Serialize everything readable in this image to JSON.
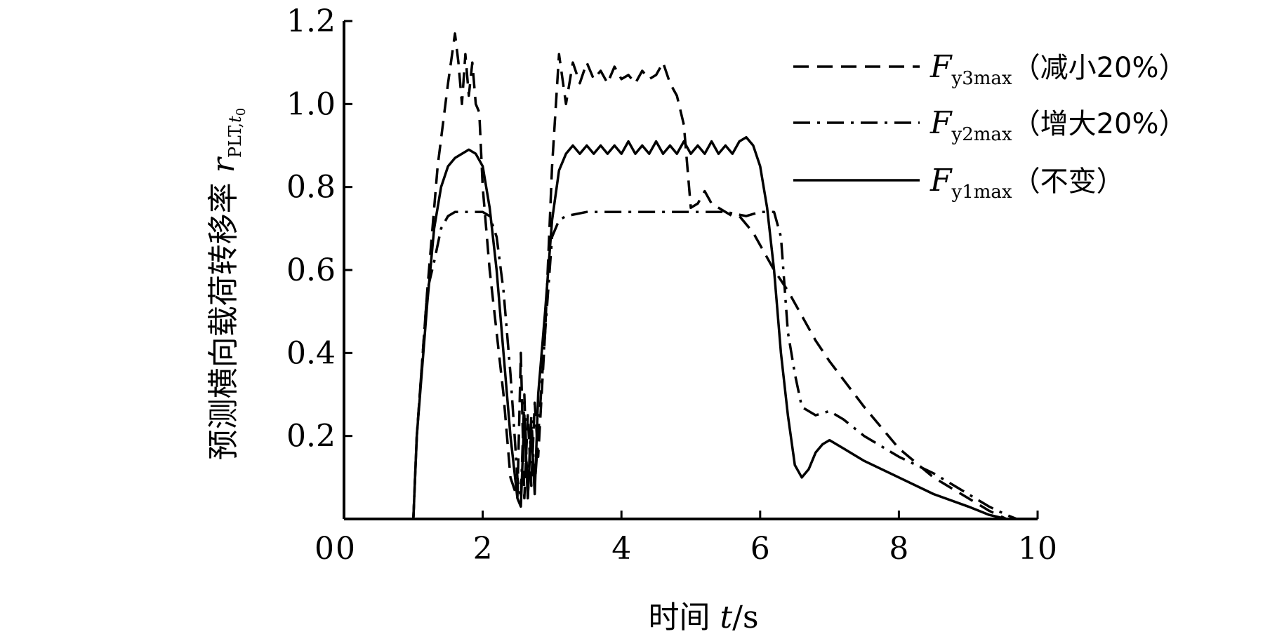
{
  "chart_data": {
    "type": "line",
    "xlabel": {
      "prefix": "时间 ",
      "var": "t",
      "suffix": "/s"
    },
    "ylabel": {
      "prefix": "预测横向载荷转移率 ",
      "var": "r",
      "sub": "PLT,",
      "sub2": "t",
      "sub3": "0"
    },
    "xlim": [
      0,
      10
    ],
    "ylim": [
      0,
      1.2
    ],
    "xticks": [
      0,
      2,
      4,
      6,
      8,
      10
    ],
    "xtick_labels": [
      "0",
      "2",
      "4",
      "6",
      "8",
      "10"
    ],
    "yticks": [
      0.2,
      0.4,
      0.6,
      0.8,
      1.0,
      1.2
    ],
    "ytick_labels": [
      "0.2",
      "0.4",
      "0.6",
      "0.8",
      "1.0",
      "1.2"
    ],
    "grid": false,
    "legend_position": "top-right",
    "series": [
      {
        "name": "Fy3max（减小20%）",
        "legend": {
          "var": "F",
          "sub": "y3max",
          "note": "（减小20%）"
        },
        "style": "dashed",
        "x": [
          0,
          1.0,
          1.05,
          1.2,
          1.35,
          1.5,
          1.6,
          1.65,
          1.7,
          1.75,
          1.8,
          1.85,
          1.9,
          1.95,
          2.0,
          2.1,
          2.2,
          2.3,
          2.4,
          2.5,
          2.55,
          2.6,
          2.65,
          2.7,
          2.75,
          2.8,
          2.9,
          3.0,
          3.1,
          3.2,
          3.3,
          3.4,
          3.5,
          3.6,
          3.7,
          3.8,
          3.9,
          4.0,
          4.1,
          4.2,
          4.3,
          4.4,
          4.5,
          4.6,
          4.7,
          4.8,
          4.9,
          5.0,
          5.1,
          5.2,
          5.3,
          5.4,
          5.5,
          5.6,
          5.7,
          5.8,
          5.9,
          6.0,
          6.2,
          6.4,
          6.6,
          6.8,
          7.0,
          7.5,
          8.0,
          8.5,
          9.0,
          9.3,
          9.55,
          9.7
        ],
        "y": [
          0,
          0,
          0.2,
          0.55,
          0.85,
          1.05,
          1.17,
          1.1,
          1.0,
          1.12,
          1.02,
          1.1,
          1.0,
          0.98,
          0.8,
          0.6,
          0.45,
          0.3,
          0.1,
          0.05,
          0.4,
          0.05,
          0.25,
          0.08,
          0.28,
          0.15,
          0.45,
          0.85,
          1.12,
          1.0,
          1.1,
          1.05,
          1.1,
          1.06,
          1.08,
          1.05,
          1.09,
          1.06,
          1.07,
          1.05,
          1.08,
          1.06,
          1.07,
          1.1,
          1.05,
          1.02,
          0.95,
          0.75,
          0.76,
          0.79,
          0.76,
          0.75,
          0.74,
          0.73,
          0.73,
          0.71,
          0.69,
          0.66,
          0.6,
          0.55,
          0.49,
          0.43,
          0.38,
          0.27,
          0.17,
          0.1,
          0.05,
          0.02,
          0.0,
          0.0
        ]
      },
      {
        "name": "Fy2max（增大20%）",
        "legend": {
          "var": "F",
          "sub": "y2max",
          "note": "（增大20%）"
        },
        "style": "dashdot",
        "x": [
          0,
          1.0,
          1.05,
          1.2,
          1.3,
          1.4,
          1.5,
          1.6,
          1.8,
          1.9,
          2.0,
          2.1,
          2.2,
          2.3,
          2.4,
          2.5,
          2.55,
          2.6,
          2.65,
          2.7,
          2.75,
          2.8,
          2.9,
          3.0,
          3.1,
          3.2,
          3.5,
          4.0,
          4.5,
          5.0,
          5.5,
          5.8,
          6.0,
          6.2,
          6.3,
          6.4,
          6.5,
          6.6,
          6.8,
          7.0,
          7.2,
          7.5,
          8.0,
          8.5,
          9.0,
          9.3,
          9.55,
          9.7
        ],
        "y": [
          0,
          0,
          0.2,
          0.55,
          0.62,
          0.7,
          0.73,
          0.74,
          0.74,
          0.74,
          0.74,
          0.73,
          0.68,
          0.55,
          0.35,
          0.1,
          0.05,
          0.3,
          0.05,
          0.25,
          0.08,
          0.2,
          0.45,
          0.68,
          0.72,
          0.73,
          0.74,
          0.74,
          0.74,
          0.74,
          0.74,
          0.73,
          0.74,
          0.74,
          0.68,
          0.45,
          0.35,
          0.27,
          0.25,
          0.26,
          0.24,
          0.2,
          0.15,
          0.11,
          0.06,
          0.03,
          0.01,
          0.0
        ]
      },
      {
        "name": "Fy1max（不变）",
        "legend": {
          "var": "F",
          "sub": "y1max",
          "note": "（不变）"
        },
        "style": "solid",
        "x": [
          0,
          1.0,
          1.05,
          1.2,
          1.3,
          1.4,
          1.5,
          1.6,
          1.7,
          1.8,
          1.9,
          2.0,
          2.1,
          2.2,
          2.3,
          2.4,
          2.5,
          2.55,
          2.6,
          2.65,
          2.7,
          2.75,
          2.8,
          2.9,
          3.0,
          3.1,
          3.2,
          3.3,
          3.4,
          3.5,
          3.6,
          3.7,
          3.8,
          3.9,
          4.0,
          4.1,
          4.2,
          4.3,
          4.4,
          4.5,
          4.6,
          4.7,
          4.8,
          4.9,
          5.0,
          5.1,
          5.2,
          5.3,
          5.4,
          5.5,
          5.6,
          5.7,
          5.8,
          5.9,
          6.0,
          6.1,
          6.2,
          6.3,
          6.4,
          6.5,
          6.6,
          6.7,
          6.8,
          6.9,
          7.0,
          7.1,
          7.2,
          7.5,
          8.0,
          8.5,
          9.0,
          9.3,
          9.55,
          9.7
        ],
        "y": [
          0,
          0,
          0.2,
          0.52,
          0.7,
          0.8,
          0.85,
          0.87,
          0.88,
          0.89,
          0.88,
          0.85,
          0.75,
          0.6,
          0.4,
          0.2,
          0.05,
          0.03,
          0.25,
          0.05,
          0.22,
          0.06,
          0.3,
          0.5,
          0.72,
          0.84,
          0.88,
          0.9,
          0.88,
          0.9,
          0.88,
          0.9,
          0.88,
          0.9,
          0.88,
          0.91,
          0.88,
          0.9,
          0.88,
          0.91,
          0.88,
          0.9,
          0.88,
          0.91,
          0.88,
          0.9,
          0.88,
          0.91,
          0.88,
          0.9,
          0.88,
          0.91,
          0.92,
          0.9,
          0.85,
          0.75,
          0.6,
          0.4,
          0.25,
          0.13,
          0.1,
          0.12,
          0.16,
          0.18,
          0.19,
          0.18,
          0.17,
          0.14,
          0.1,
          0.06,
          0.03,
          0.01,
          0.0,
          0.0
        ]
      }
    ]
  }
}
